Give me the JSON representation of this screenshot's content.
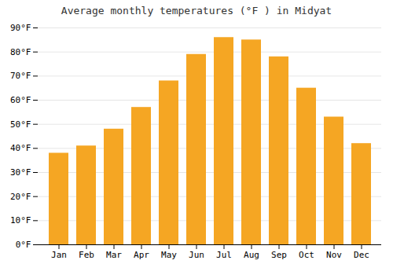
{
  "chart_data": {
    "type": "bar",
    "title": "Average monthly temperatures (°F ) in Midyat",
    "categories": [
      "Jan",
      "Feb",
      "Mar",
      "Apr",
      "May",
      "Jun",
      "Jul",
      "Aug",
      "Sep",
      "Oct",
      "Nov",
      "Dec"
    ],
    "values": [
      38,
      41,
      48,
      57,
      68,
      79,
      86,
      85,
      78,
      65,
      53,
      42
    ],
    "color": "#F5A623",
    "ylim": [
      0,
      90
    ],
    "yticks": [
      {
        "value": 0,
        "label": "0°F"
      },
      {
        "value": 10,
        "label": "10°F"
      },
      {
        "value": 20,
        "label": "20°F"
      },
      {
        "value": 30,
        "label": "30°F"
      },
      {
        "value": 40,
        "label": "40°F"
      },
      {
        "value": 50,
        "label": "50°F"
      },
      {
        "value": 60,
        "label": "60°F"
      },
      {
        "value": 70,
        "label": "70°F"
      },
      {
        "value": 80,
        "label": "80°F"
      },
      {
        "value": 90,
        "label": "90°F"
      }
    ],
    "grid": true
  }
}
